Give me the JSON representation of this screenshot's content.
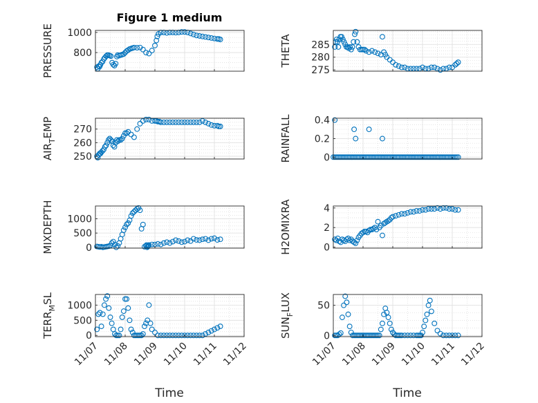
{
  "figure": {
    "title": "Figure 1 medium",
    "xlabel": "Time"
  },
  "x_ticks": [
    "11/07",
    "11/08",
    "11/09",
    "11/10",
    "11/11",
    "11/12"
  ],
  "marker_color": "#0072BD",
  "chart_data": [
    {
      "type": "scatter",
      "ylabel": "PRESSURE",
      "yticks": [
        800,
        1000
      ],
      "ylim": [
        615,
        1020
      ],
      "x": [
        0.05,
        0.08,
        0.11,
        0.14,
        0.17,
        0.2,
        0.24,
        0.28,
        0.32,
        0.36,
        0.4,
        0.44,
        0.48,
        0.52,
        0.56,
        0.6,
        0.64,
        0.68,
        0.72,
        0.75,
        0.8,
        0.85,
        0.9,
        0.95,
        1.0,
        1.05,
        1.1,
        1.15,
        1.2,
        1.25,
        1.3,
        1.4,
        1.5,
        1.6,
        1.7,
        1.8,
        1.9,
        2.0,
        2.05,
        2.08,
        2.12,
        2.2,
        2.3,
        2.4,
        2.5,
        2.6,
        2.7,
        2.8,
        2.9,
        3.0,
        3.1,
        3.2,
        3.3,
        3.4,
        3.5,
        3.6,
        3.7,
        3.8,
        3.9,
        4.0,
        4.1,
        4.15,
        4.2
      ],
      "y": [
        655,
        640,
        665,
        660,
        680,
        700,
        710,
        735,
        750,
        765,
        775,
        775,
        770,
        765,
        700,
        680,
        670,
        690,
        760,
        775,
        770,
        775,
        780,
        785,
        800,
        815,
        825,
        835,
        840,
        845,
        850,
        848,
        850,
        830,
        800,
        790,
        820,
        870,
        920,
        960,
        985,
        1000,
        1000,
        995,
        1000,
        1000,
        998,
        1000,
        1005,
        1005,
        1000,
        990,
        980,
        970,
        965,
        960,
        955,
        950,
        945,
        940,
        935,
        935,
        930
      ]
    },
    {
      "type": "scatter",
      "ylabel": "THETA",
      "yticks": [
        275,
        280,
        285
      ],
      "ylim": [
        274.5,
        290.5
      ],
      "x": [
        0.05,
        0.08,
        0.11,
        0.14,
        0.17,
        0.2,
        0.24,
        0.28,
        0.32,
        0.36,
        0.4,
        0.44,
        0.48,
        0.52,
        0.56,
        0.6,
        0.64,
        0.68,
        0.72,
        0.75,
        0.8,
        0.85,
        0.9,
        0.95,
        1.0,
        1.05,
        1.1,
        1.2,
        1.3,
        1.4,
        1.5,
        1.6,
        1.65,
        1.7,
        1.75,
        1.8,
        1.9,
        2.0,
        2.1,
        2.2,
        2.3,
        2.4,
        2.5,
        2.6,
        2.7,
        2.8,
        2.9,
        3.0,
        3.1,
        3.2,
        3.3,
        3.4,
        3.5,
        3.6,
        3.7,
        3.8,
        3.9,
        4.0,
        4.1,
        4.15,
        4.2
      ],
      "y": [
        284,
        286,
        287,
        286,
        284,
        287,
        288,
        288,
        287,
        286,
        285,
        284,
        284,
        283.5,
        284,
        283,
        284,
        286,
        289,
        290,
        286,
        284,
        283,
        283,
        283,
        283,
        282.5,
        282,
        282.5,
        282,
        281.5,
        281,
        288,
        282,
        281,
        280,
        279,
        278,
        277,
        276.5,
        276,
        276,
        275.5,
        275.5,
        275.5,
        275.5,
        275.5,
        276,
        275.5,
        275.5,
        276,
        276,
        275.5,
        275,
        275.5,
        275.5,
        276,
        276,
        277,
        277.5,
        278
      ]
    },
    {
      "type": "scatter",
      "ylabel": "AIR_TEMP",
      "yticks": [
        250,
        260,
        270
      ],
      "ylim": [
        248,
        278
      ],
      "x": [
        0.05,
        0.08,
        0.11,
        0.14,
        0.17,
        0.2,
        0.24,
        0.28,
        0.32,
        0.36,
        0.4,
        0.44,
        0.48,
        0.52,
        0.56,
        0.6,
        0.64,
        0.68,
        0.72,
        0.75,
        0.8,
        0.85,
        0.9,
        0.95,
        1.0,
        1.05,
        1.1,
        1.2,
        1.3,
        1.4,
        1.5,
        1.6,
        1.7,
        1.8,
        1.9,
        2.0,
        2.05,
        2.1,
        2.15,
        2.2,
        2.3,
        2.4,
        2.5,
        2.6,
        2.7,
        2.8,
        2.9,
        3.0,
        3.1,
        3.2,
        3.3,
        3.4,
        3.5,
        3.6,
        3.7,
        3.8,
        3.9,
        4.0,
        4.1,
        4.15,
        4.2
      ],
      "y": [
        250,
        249,
        251,
        252,
        252,
        253,
        254,
        255,
        257,
        258,
        260,
        262,
        263,
        262,
        261,
        258,
        257,
        260,
        262,
        261,
        262,
        262,
        263,
        265,
        267,
        267,
        268,
        266,
        264,
        270,
        274,
        276,
        277,
        277,
        276,
        276,
        276,
        275.5,
        275.5,
        275,
        275,
        275,
        275,
        275,
        275,
        275,
        275,
        275,
        275,
        275,
        275,
        275,
        275,
        276,
        275,
        274,
        273,
        272.5,
        272.5,
        272,
        272
      ]
    },
    {
      "type": "scatter",
      "ylabel": "RAINFALL",
      "yticks": [
        0,
        0.2,
        0.4
      ],
      "ylim": [
        -0.02,
        0.42
      ],
      "x": [
        0.0,
        0.05,
        0.1,
        0.15,
        0.2,
        0.25,
        0.3,
        0.35,
        0.4,
        0.45,
        0.5,
        0.55,
        0.6,
        0.65,
        0.7,
        0.75,
        0.8,
        0.85,
        0.9,
        0.95,
        1.0,
        1.05,
        1.1,
        1.15,
        1.2,
        1.25,
        1.3,
        1.35,
        1.4,
        1.45,
        1.5,
        1.55,
        1.6,
        1.65,
        1.7,
        1.75,
        1.8,
        1.85,
        1.9,
        1.95,
        2.0,
        2.05,
        2.1,
        2.15,
        2.2,
        2.25,
        2.3,
        2.35,
        2.4,
        2.45,
        2.5,
        2.55,
        2.6,
        2.65,
        2.7,
        2.75,
        2.8,
        2.85,
        2.9,
        2.95,
        3.0,
        3.05,
        3.1,
        3.15,
        3.2,
        3.25,
        3.3,
        3.35,
        3.4,
        3.45,
        3.5,
        3.55,
        3.6,
        3.65,
        3.7,
        3.75,
        3.8,
        3.85,
        3.9,
        3.95,
        4.0,
        4.05,
        4.1,
        4.15,
        4.2,
        0.05,
        0.7,
        0.75,
        1.2,
        1.65
      ],
      "y": [
        0,
        0,
        0,
        0,
        0,
        0,
        0,
        0,
        0,
        0,
        0,
        0,
        0,
        0,
        0,
        0,
        0,
        0,
        0,
        0,
        0,
        0,
        0,
        0,
        0,
        0,
        0,
        0,
        0,
        0,
        0,
        0,
        0,
        0,
        0,
        0,
        0,
        0,
        0,
        0,
        0,
        0,
        0,
        0,
        0,
        0,
        0,
        0,
        0,
        0,
        0,
        0,
        0,
        0,
        0,
        0,
        0,
        0,
        0,
        0,
        0,
        0,
        0,
        0,
        0,
        0,
        0,
        0,
        0,
        0,
        0,
        0,
        0,
        0,
        0,
        0,
        0,
        0,
        0,
        0,
        0,
        0,
        0,
        0,
        0,
        0.4,
        0.3,
        0.2,
        0.3,
        0.2
      ]
    },
    {
      "type": "scatter",
      "ylabel": "MIXDEPTH",
      "yticks": [
        0,
        500,
        1000
      ],
      "ylim": [
        -30,
        1450
      ],
      "x": [
        0.05,
        0.1,
        0.15,
        0.2,
        0.25,
        0.3,
        0.35,
        0.4,
        0.45,
        0.5,
        0.55,
        0.6,
        0.65,
        0.7,
        0.75,
        0.8,
        0.85,
        0.9,
        0.95,
        1.0,
        1.05,
        1.1,
        1.15,
        1.2,
        1.25,
        1.3,
        1.35,
        1.4,
        1.45,
        1.5,
        1.55,
        1.6,
        1.65,
        1.7,
        1.72,
        1.74,
        1.76,
        1.78,
        1.8,
        1.9,
        2.0,
        2.1,
        2.2,
        2.3,
        2.4,
        2.5,
        2.6,
        2.7,
        2.8,
        2.9,
        3.0,
        3.1,
        3.2,
        3.3,
        3.4,
        3.5,
        3.6,
        3.7,
        3.8,
        3.9,
        4.0,
        4.1,
        4.2
      ],
      "y": [
        30,
        20,
        10,
        20,
        0,
        10,
        20,
        30,
        40,
        60,
        150,
        200,
        100,
        0,
        50,
        150,
        300,
        450,
        600,
        700,
        800,
        850,
        950,
        1100,
        1200,
        1250,
        1300,
        1350,
        1380,
        1300,
        650,
        800,
        20,
        50,
        80,
        0,
        30,
        60,
        80,
        100,
        100,
        120,
        100,
        150,
        180,
        150,
        200,
        250,
        220,
        180,
        200,
        250,
        220,
        300,
        260,
        250,
        280,
        300,
        250,
        300,
        320,
        260,
        280
      ]
    },
    {
      "type": "scatter",
      "ylabel": "H2OMIXRA",
      "yticks": [
        0,
        2,
        4
      ],
      "ylim": [
        -0.1,
        4.2
      ],
      "x": [
        0.05,
        0.1,
        0.15,
        0.2,
        0.25,
        0.3,
        0.35,
        0.4,
        0.45,
        0.5,
        0.55,
        0.6,
        0.65,
        0.7,
        0.75,
        0.8,
        0.85,
        0.9,
        0.95,
        1.0,
        1.05,
        1.1,
        1.15,
        1.2,
        1.25,
        1.3,
        1.35,
        1.4,
        1.45,
        1.5,
        1.55,
        1.6,
        1.65,
        1.7,
        1.75,
        1.8,
        1.85,
        1.9,
        1.95,
        2.0,
        2.1,
        2.2,
        2.3,
        2.4,
        2.5,
        2.6,
        2.7,
        2.8,
        2.9,
        3.0,
        3.1,
        3.2,
        3.3,
        3.4,
        3.5,
        3.6,
        3.7,
        3.8,
        3.9,
        4.0,
        4.1,
        4.2
      ],
      "y": [
        0.8,
        0.7,
        0.9,
        0.6,
        0.5,
        0.8,
        0.7,
        0.6,
        0.8,
        0.9,
        0.7,
        0.8,
        0.6,
        0.5,
        0.4,
        0.7,
        1.0,
        1.2,
        1.4,
        1.5,
        1.6,
        1.6,
        1.5,
        1.7,
        1.8,
        1.8,
        1.9,
        2.0,
        1.8,
        2.6,
        2.0,
        2.2,
        1.2,
        2.4,
        2.5,
        2.6,
        2.7,
        2.8,
        3.0,
        3.1,
        3.2,
        3.3,
        3.4,
        3.4,
        3.5,
        3.6,
        3.6,
        3.7,
        3.7,
        3.8,
        3.8,
        3.9,
        3.9,
        3.9,
        4.0,
        3.9,
        4.0,
        4.0,
        3.9,
        3.9,
        3.8,
        3.8
      ]
    },
    {
      "type": "scatter",
      "ylabel": "TERR_MSL",
      "yticks": [
        0,
        500,
        1000
      ],
      "ylim": [
        -40,
        1350
      ],
      "x": [
        0.05,
        0.1,
        0.15,
        0.2,
        0.25,
        0.3,
        0.35,
        0.4,
        0.45,
        0.5,
        0.55,
        0.6,
        0.65,
        0.7,
        0.75,
        0.8,
        0.85,
        0.9,
        0.95,
        1.0,
        1.05,
        1.1,
        1.15,
        1.2,
        1.25,
        1.3,
        1.35,
        1.4,
        1.45,
        1.5,
        1.55,
        1.6,
        1.65,
        1.7,
        1.75,
        1.8,
        1.85,
        1.9,
        2.0,
        2.1,
        2.2,
        2.3,
        2.4,
        2.5,
        2.6,
        2.7,
        2.8,
        2.9,
        3.0,
        3.1,
        3.2,
        3.3,
        3.4,
        3.5,
        3.6,
        3.7,
        3.8,
        3.9,
        4.0,
        4.1,
        4.2
      ],
      "y": [
        200,
        700,
        750,
        300,
        700,
        1000,
        1200,
        1300,
        900,
        600,
        400,
        200,
        50,
        0,
        0,
        0,
        200,
        600,
        800,
        1200,
        1200,
        900,
        500,
        200,
        100,
        0,
        0,
        0,
        0,
        0,
        0,
        50,
        300,
        400,
        500,
        1000,
        400,
        200,
        100,
        0,
        0,
        0,
        0,
        0,
        0,
        0,
        0,
        0,
        0,
        0,
        0,
        0,
        0,
        0,
        0,
        50,
        100,
        150,
        200,
        250,
        300
      ]
    },
    {
      "type": "scatter",
      "ylabel": "SUN_FLUX",
      "yticks": [
        0,
        50
      ],
      "ylim": [
        -2,
        68
      ],
      "x": [
        0.05,
        0.1,
        0.15,
        0.2,
        0.25,
        0.3,
        0.35,
        0.4,
        0.45,
        0.5,
        0.55,
        0.6,
        0.65,
        0.7,
        0.75,
        0.8,
        0.85,
        0.9,
        0.95,
        1.0,
        1.05,
        1.1,
        1.15,
        1.2,
        1.25,
        1.3,
        1.35,
        1.4,
        1.45,
        1.5,
        1.55,
        1.6,
        1.65,
        1.7,
        1.75,
        1.8,
        1.85,
        1.9,
        1.95,
        2.0,
        2.05,
        2.1,
        2.15,
        2.2,
        2.25,
        2.3,
        2.4,
        2.5,
        2.6,
        2.7,
        2.8,
        2.85,
        2.9,
        2.95,
        3.0,
        3.05,
        3.1,
        3.15,
        3.2,
        3.25,
        3.3,
        3.4,
        3.5,
        3.6,
        3.7,
        3.8,
        3.9,
        4.0,
        4.1,
        4.2
      ],
      "y": [
        0,
        0,
        0,
        2,
        4,
        30,
        50,
        65,
        55,
        35,
        15,
        5,
        0,
        0,
        0,
        0,
        0,
        0,
        0,
        0,
        0,
        0,
        0,
        0,
        0,
        0,
        0,
        0,
        0,
        0,
        0,
        10,
        20,
        35,
        45,
        38,
        30,
        20,
        10,
        5,
        2,
        0,
        0,
        0,
        0,
        0,
        0,
        0,
        0,
        0,
        0,
        0,
        0,
        0,
        5,
        15,
        25,
        35,
        50,
        58,
        40,
        20,
        8,
        3,
        0,
        0,
        0,
        0,
        0,
        0
      ]
    }
  ]
}
